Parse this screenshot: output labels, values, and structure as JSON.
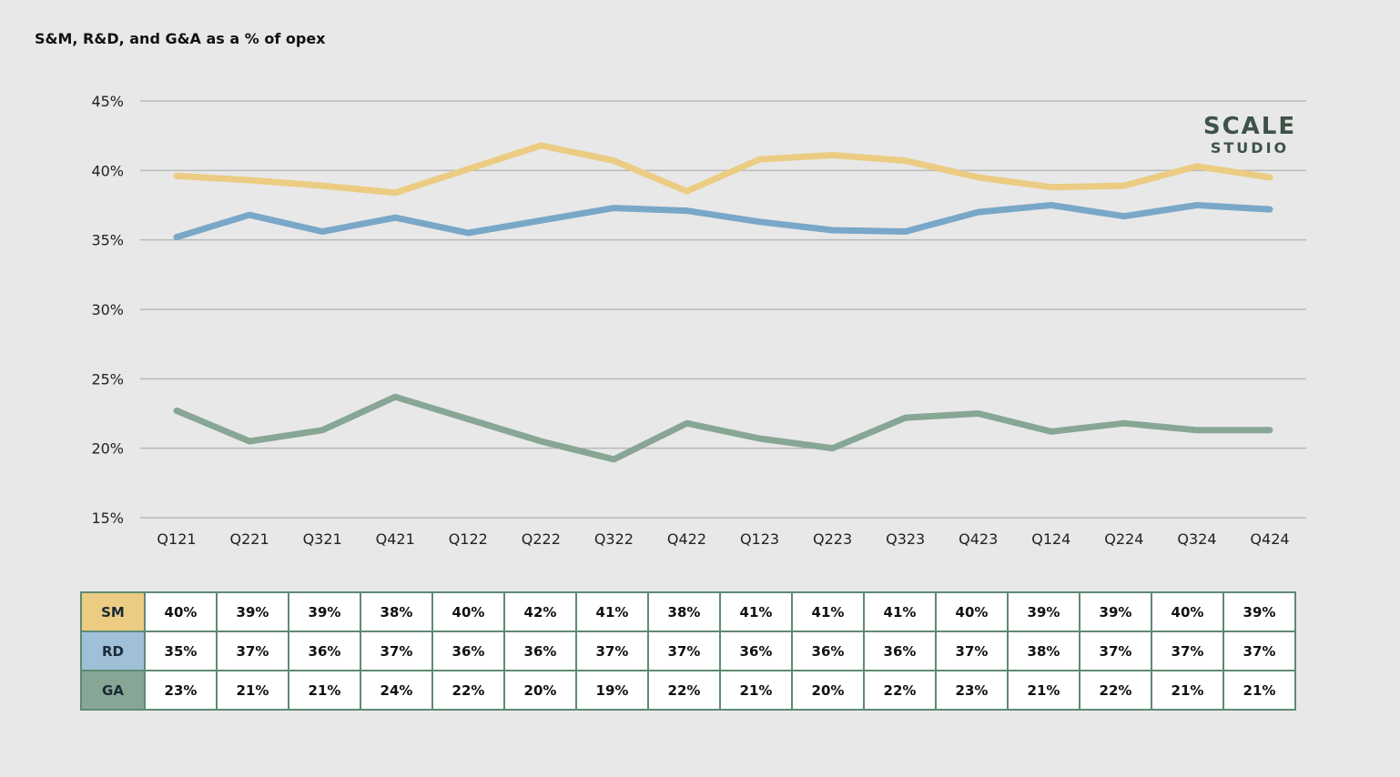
{
  "chart_data": {
    "type": "line",
    "title": "S&M, R&D, and G&A as a % of opex",
    "categories": [
      "Q121",
      "Q221",
      "Q321",
      "Q421",
      "Q122",
      "Q222",
      "Q322",
      "Q422",
      "Q123",
      "Q223",
      "Q323",
      "Q423",
      "Q124",
      "Q224",
      "Q324",
      "Q424"
    ],
    "ylim": [
      15,
      45
    ],
    "yticks": [
      "45%",
      "40%",
      "35%",
      "30%",
      "25%",
      "20%",
      "15%"
    ],
    "ytick_values": [
      45,
      40,
      35,
      30,
      25,
      20,
      15
    ],
    "grid": true,
    "series": [
      {
        "name": "SM",
        "color": "#ebcc82",
        "values": [
          39.6,
          39.3,
          38.9,
          38.4,
          40.1,
          41.8,
          40.7,
          38.5,
          40.8,
          41.1,
          40.7,
          39.5,
          38.8,
          38.9,
          40.3,
          39.5
        ],
        "labels": [
          "40%",
          "39%",
          "39%",
          "38%",
          "40%",
          "42%",
          "41%",
          "38%",
          "41%",
          "41%",
          "41%",
          "40%",
          "39%",
          "39%",
          "40%",
          "39%"
        ]
      },
      {
        "name": "RD",
        "color": "#79a7c8",
        "values": [
          35.2,
          36.8,
          35.6,
          36.6,
          35.5,
          36.4,
          37.3,
          37.1,
          36.3,
          35.7,
          35.6,
          37.0,
          37.5,
          36.7,
          37.5,
          37.2
        ],
        "labels": [
          "35%",
          "37%",
          "36%",
          "37%",
          "36%",
          "36%",
          "37%",
          "37%",
          "36%",
          "36%",
          "36%",
          "37%",
          "38%",
          "37%",
          "37%",
          "37%"
        ]
      },
      {
        "name": "GA",
        "color": "#87a695",
        "values": [
          22.7,
          20.5,
          21.3,
          23.7,
          22.1,
          20.5,
          19.2,
          21.8,
          20.7,
          20.0,
          22.2,
          22.5,
          21.2,
          21.8,
          21.3,
          21.3
        ],
        "labels": [
          "23%",
          "21%",
          "21%",
          "24%",
          "22%",
          "20%",
          "19%",
          "22%",
          "21%",
          "20%",
          "22%",
          "23%",
          "21%",
          "22%",
          "21%",
          "21%"
        ]
      }
    ]
  },
  "logo": {
    "line1": "SCALE",
    "line2": "STUDIO"
  },
  "table_colors": {
    "SM": "#ebcc82",
    "RD": "#a0c0d8",
    "GA": "#87a695",
    "border": "#5e8a73"
  }
}
